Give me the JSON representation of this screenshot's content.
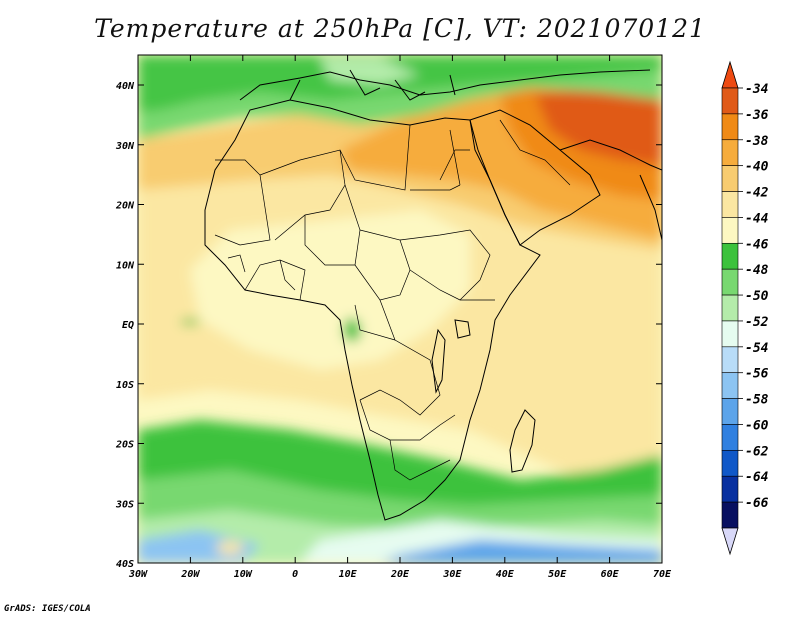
{
  "title": "Temperature at 250hPa [C], VT: 2021070121",
  "credit": "GrADS: IGES/COLA",
  "axes": {
    "lon_ticks": [
      "30W",
      "20W",
      "10W",
      "0",
      "10E",
      "20E",
      "30E",
      "40E",
      "50E",
      "60E",
      "70E"
    ],
    "lat_ticks": [
      "40N",
      "30N",
      "20N",
      "10N",
      "EQ",
      "10S",
      "20S",
      "30S",
      "40S"
    ]
  },
  "colorbar": {
    "levels": [
      "-34",
      "-36",
      "-38",
      "-40",
      "-42",
      "-44",
      "-46",
      "-48",
      "-50",
      "-52",
      "-54",
      "-56",
      "-58",
      "-60",
      "-62",
      "-64",
      "-66"
    ],
    "colors": [
      "#e05a18",
      "#f08a16",
      "#f6ac3c",
      "#f8cc70",
      "#fbe7a2",
      "#fdf8c2",
      "#3cc23c",
      "#78d870",
      "#b4ecaa",
      "#e6fcf0",
      "#b8dcf8",
      "#8cc4f2",
      "#5ca4ea",
      "#3080e0",
      "#1058c8",
      "#0830a0",
      "#081060"
    ],
    "top_arrow_color": "#ee4a12",
    "bottom_arrow_color": "#d8d8f8"
  }
}
